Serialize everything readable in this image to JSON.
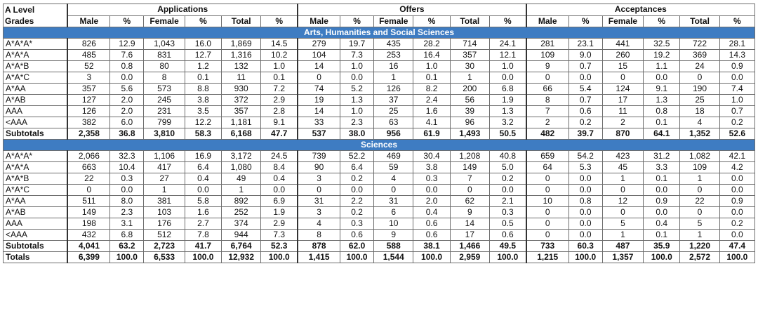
{
  "header": {
    "grades_label_line1": "A Level",
    "grades_label_line2": "Grades",
    "groups": [
      "Applications",
      "Offers",
      "Acceptances"
    ],
    "columns": [
      "Male",
      "%",
      "Female",
      "%",
      "Total",
      "%"
    ]
  },
  "sections": [
    {
      "title": "Arts, Humanities and Social Sciences",
      "rows": [
        [
          "A*A*A*",
          "826",
          "12.9",
          "1,043",
          "16.0",
          "1,869",
          "14.5",
          "279",
          "19.7",
          "435",
          "28.2",
          "714",
          "24.1",
          "281",
          "23.1",
          "441",
          "32.5",
          "722",
          "28.1"
        ],
        [
          "A*A*A",
          "485",
          "7.6",
          "831",
          "12.7",
          "1,316",
          "10.2",
          "104",
          "7.3",
          "253",
          "16.4",
          "357",
          "12.1",
          "109",
          "9.0",
          "260",
          "19.2",
          "369",
          "14.3"
        ],
        [
          "A*A*B",
          "52",
          "0.8",
          "80",
          "1.2",
          "132",
          "1.0",
          "14",
          "1.0",
          "16",
          "1.0",
          "30",
          "1.0",
          "9",
          "0.7",
          "15",
          "1.1",
          "24",
          "0.9"
        ],
        [
          "A*A*C",
          "3",
          "0.0",
          "8",
          "0.1",
          "11",
          "0.1",
          "0",
          "0.0",
          "1",
          "0.1",
          "1",
          "0.0",
          "0",
          "0.0",
          "0",
          "0.0",
          "0",
          "0.0"
        ],
        [
          "A*AA",
          "357",
          "5.6",
          "573",
          "8.8",
          "930",
          "7.2",
          "74",
          "5.2",
          "126",
          "8.2",
          "200",
          "6.8",
          "66",
          "5.4",
          "124",
          "9.1",
          "190",
          "7.4"
        ],
        [
          "A*AB",
          "127",
          "2.0",
          "245",
          "3.8",
          "372",
          "2.9",
          "19",
          "1.3",
          "37",
          "2.4",
          "56",
          "1.9",
          "8",
          "0.7",
          "17",
          "1.3",
          "25",
          "1.0"
        ],
        [
          "AAA",
          "126",
          "2.0",
          "231",
          "3.5",
          "357",
          "2.8",
          "14",
          "1.0",
          "25",
          "1.6",
          "39",
          "1.3",
          "7",
          "0.6",
          "11",
          "0.8",
          "18",
          "0.7"
        ],
        [
          "<AAA",
          "382",
          "6.0",
          "799",
          "12.2",
          "1,181",
          "9.1",
          "33",
          "2.3",
          "63",
          "4.1",
          "96",
          "3.2",
          "2",
          "0.2",
          "2",
          "0.1",
          "4",
          "0.2"
        ]
      ],
      "subtotal": [
        "Subtotals",
        "2,358",
        "36.8",
        "3,810",
        "58.3",
        "6,168",
        "47.7",
        "537",
        "38.0",
        "956",
        "61.9",
        "1,493",
        "50.5",
        "482",
        "39.7",
        "870",
        "64.1",
        "1,352",
        "52.6"
      ]
    },
    {
      "title": "Sciences",
      "rows": [
        [
          "A*A*A*",
          "2,066",
          "32.3",
          "1,106",
          "16.9",
          "3,172",
          "24.5",
          "739",
          "52.2",
          "469",
          "30.4",
          "1,208",
          "40.8",
          "659",
          "54.2",
          "423",
          "31.2",
          "1,082",
          "42.1"
        ],
        [
          "A*A*A",
          "663",
          "10.4",
          "417",
          "6.4",
          "1,080",
          "8.4",
          "90",
          "6.4",
          "59",
          "3.8",
          "149",
          "5.0",
          "64",
          "5.3",
          "45",
          "3.3",
          "109",
          "4.2"
        ],
        [
          "A*A*B",
          "22",
          "0.3",
          "27",
          "0.4",
          "49",
          "0.4",
          "3",
          "0.2",
          "4",
          "0.3",
          "7",
          "0.2",
          "0",
          "0.0",
          "1",
          "0.1",
          "1",
          "0.0"
        ],
        [
          "A*A*C",
          "0",
          "0.0",
          "1",
          "0.0",
          "1",
          "0.0",
          "0",
          "0.0",
          "0",
          "0.0",
          "0",
          "0.0",
          "0",
          "0.0",
          "0",
          "0.0",
          "0",
          "0.0"
        ],
        [
          "A*AA",
          "511",
          "8.0",
          "381",
          "5.8",
          "892",
          "6.9",
          "31",
          "2.2",
          "31",
          "2.0",
          "62",
          "2.1",
          "10",
          "0.8",
          "12",
          "0.9",
          "22",
          "0.9"
        ],
        [
          "A*AB",
          "149",
          "2.3",
          "103",
          "1.6",
          "252",
          "1.9",
          "3",
          "0.2",
          "6",
          "0.4",
          "9",
          "0.3",
          "0",
          "0.0",
          "0",
          "0.0",
          "0",
          "0.0"
        ],
        [
          "AAA",
          "198",
          "3.1",
          "176",
          "2.7",
          "374",
          "2.9",
          "4",
          "0.3",
          "10",
          "0.6",
          "14",
          "0.5",
          "0",
          "0.0",
          "5",
          "0.4",
          "5",
          "0.2"
        ],
        [
          "<AAA",
          "432",
          "6.8",
          "512",
          "7.8",
          "944",
          "7.3",
          "8",
          "0.6",
          "9",
          "0.6",
          "17",
          "0.6",
          "0",
          "0.0",
          "1",
          "0.1",
          "1",
          "0.0"
        ]
      ],
      "subtotal": [
        "Subtotals",
        "4,041",
        "63.2",
        "2,723",
        "41.7",
        "6,764",
        "52.3",
        "878",
        "62.0",
        "588",
        "38.1",
        "1,466",
        "49.5",
        "733",
        "60.3",
        "487",
        "35.9",
        "1,220",
        "47.4"
      ]
    }
  ],
  "totals": [
    "Totals",
    "6,399",
    "100.0",
    "6,533",
    "100.0",
    "12,932",
    "100.0",
    "1,415",
    "100.0",
    "1,544",
    "100.0",
    "2,959",
    "100.0",
    "1,215",
    "100.0",
    "1,357",
    "100.0",
    "2,572",
    "100.0"
  ]
}
